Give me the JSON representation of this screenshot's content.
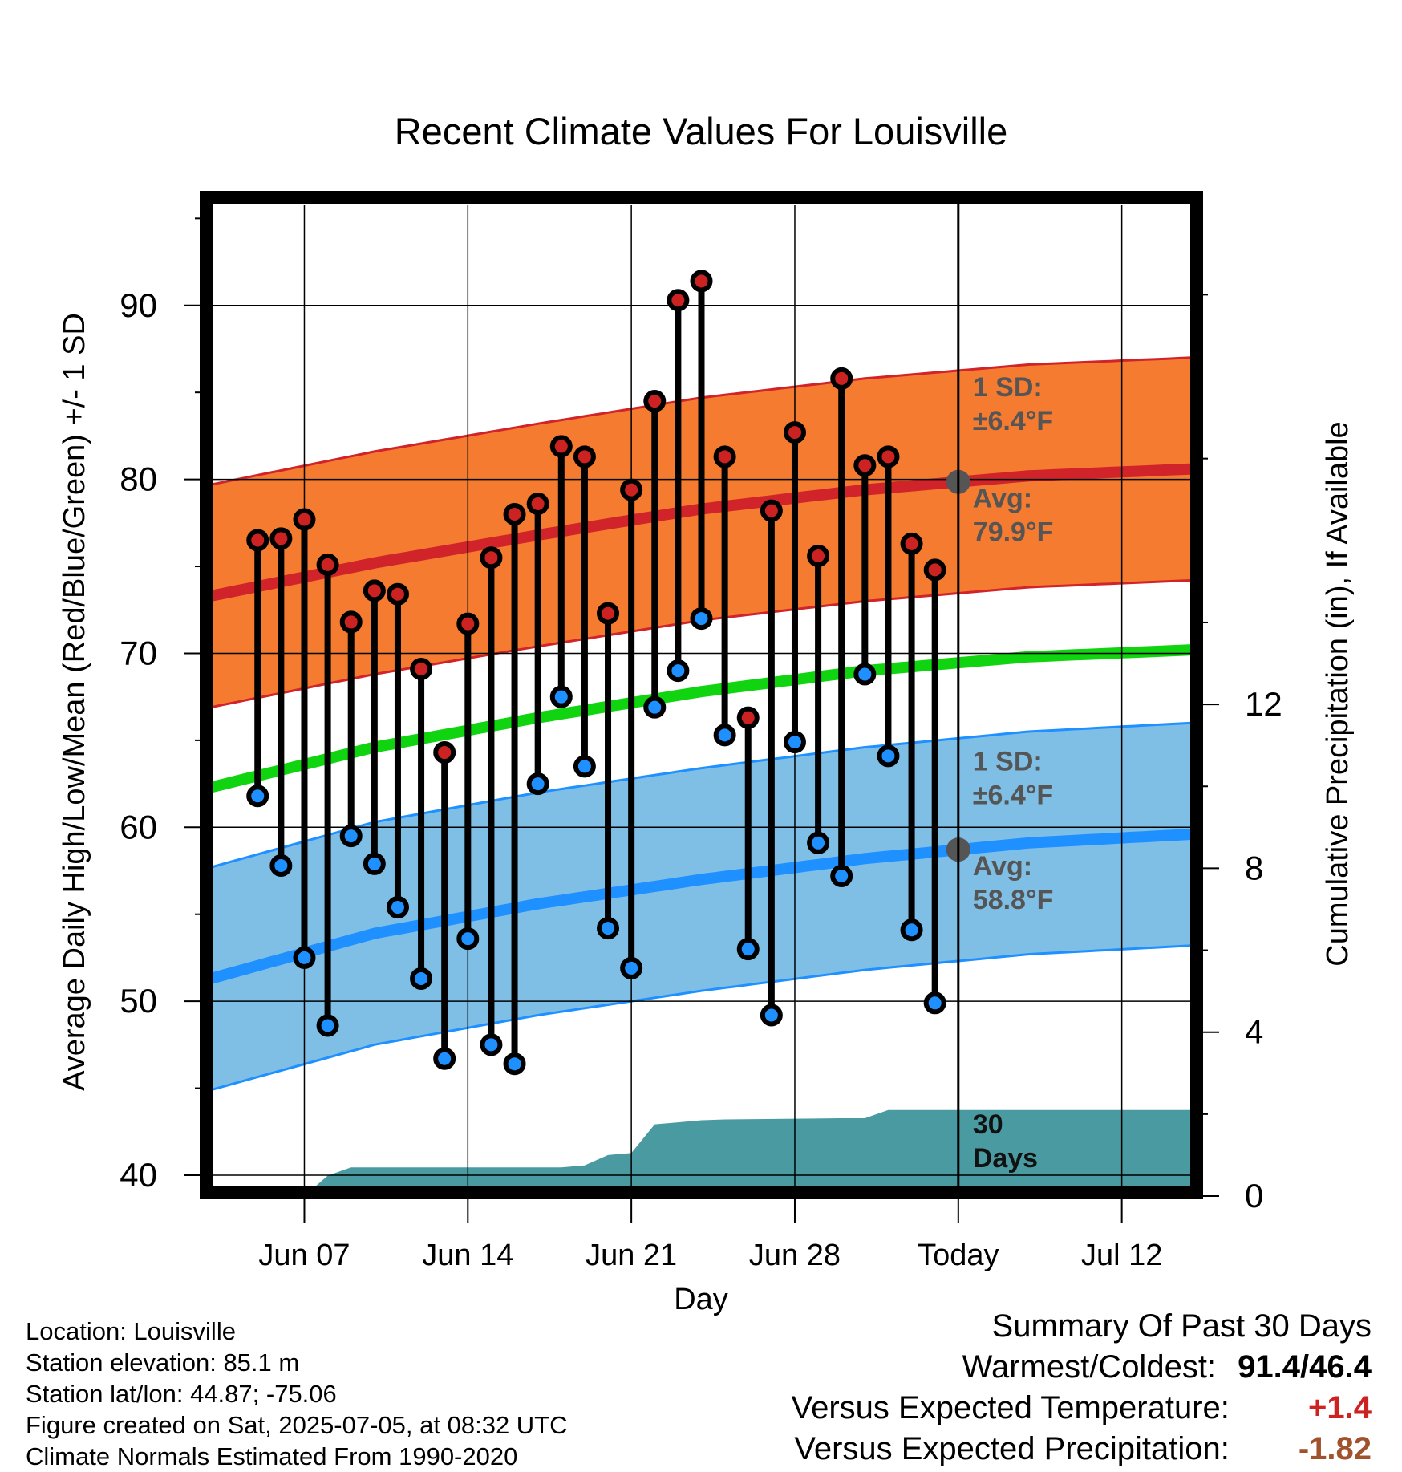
{
  "title": "Recent Climate Values For Louisville",
  "chart_data": {
    "type": "line",
    "title": "Recent Climate Values For Louisville",
    "xlabel": "Day",
    "ylabel": "Average Daily High/Low/Mean (Red/Blue/Green) +/- 1 SD",
    "y2label": "Cumulative Precipitation (in), If Available",
    "x_ticks": [
      "Jun 07",
      "Jun 14",
      "Jun 21",
      "Jun 28",
      "Today",
      "Jul 12"
    ],
    "x_tick_dates": [
      "2025-06-07",
      "2025-06-14",
      "2025-06-21",
      "2025-06-28",
      "2025-07-05",
      "2025-07-12"
    ],
    "xlim": [
      "2025-06-03",
      "2025-07-15"
    ],
    "today": "2025-07-05",
    "y_ticks": [
      40,
      50,
      60,
      70,
      80,
      90
    ],
    "ylim": [
      38.8,
      95.8
    ],
    "y2_ticks": [
      0,
      4,
      8,
      12
    ],
    "y2lim": [
      0,
      24.2
    ],
    "grid": true,
    "observed": {
      "dates": [
        "2025-06-05",
        "2025-06-06",
        "2025-06-07",
        "2025-06-08",
        "2025-06-09",
        "2025-06-10",
        "2025-06-11",
        "2025-06-12",
        "2025-06-13",
        "2025-06-14",
        "2025-06-15",
        "2025-06-16",
        "2025-06-17",
        "2025-06-18",
        "2025-06-19",
        "2025-06-20",
        "2025-06-21",
        "2025-06-22",
        "2025-06-23",
        "2025-06-24",
        "2025-06-25",
        "2025-06-26",
        "2025-06-27",
        "2025-06-28",
        "2025-06-29",
        "2025-06-30",
        "2025-07-01",
        "2025-07-02",
        "2025-07-03",
        "2025-07-04"
      ],
      "high": [
        76.5,
        76.6,
        77.7,
        75.1,
        71.8,
        73.6,
        73.4,
        69.1,
        64.3,
        71.7,
        75.5,
        78.0,
        78.6,
        81.9,
        81.3,
        72.3,
        79.4,
        84.5,
        90.3,
        91.4,
        81.3,
        66.3,
        78.2,
        82.7,
        75.6,
        85.8,
        80.8,
        81.3,
        76.3,
        74.8
      ],
      "low": [
        61.8,
        57.8,
        52.5,
        48.6,
        59.5,
        57.9,
        55.4,
        51.3,
        46.7,
        53.6,
        47.5,
        46.4,
        62.5,
        67.5,
        63.5,
        54.2,
        51.9,
        66.9,
        69.0,
        72.0,
        65.3,
        53.0,
        49.2,
        64.9,
        59.1,
        57.2,
        68.8,
        64.1,
        54.1,
        49.9
      ]
    },
    "normals": {
      "dates": [
        "2025-06-03",
        "2025-06-10",
        "2025-06-17",
        "2025-06-24",
        "2025-07-01",
        "2025-07-08",
        "2025-07-15"
      ],
      "high_avg": [
        73.3,
        75.2,
        76.8,
        78.3,
        79.4,
        80.2,
        80.6
      ],
      "low_avg": [
        51.3,
        53.9,
        55.6,
        57.0,
        58.2,
        59.1,
        59.6
      ],
      "mean_avg": [
        62.3,
        64.6,
        66.3,
        67.8,
        69.0,
        69.8,
        70.2
      ],
      "high_sd": 6.4,
      "low_sd": 6.4
    },
    "precip": {
      "dates": [
        "2025-06-07",
        "2025-06-08",
        "2025-06-09",
        "2025-06-18",
        "2025-06-19",
        "2025-06-20",
        "2025-06-21",
        "2025-06-22",
        "2025-06-23",
        "2025-06-24",
        "2025-06-25",
        "2025-06-30",
        "2025-07-01",
        "2025-07-02",
        "2025-07-15"
      ],
      "cumulative": [
        0.0,
        0.5,
        0.7,
        0.7,
        0.75,
        1.0,
        1.05,
        1.75,
        1.8,
        1.85,
        1.87,
        1.9,
        1.9,
        2.1,
        2.1
      ]
    },
    "annotations": {
      "high_sd_label": "1 SD:",
      "high_sd_value": "±6.4°F",
      "high_avg_label": "Avg:",
      "high_avg_value": "79.9°F",
      "low_sd_label": "1 SD:",
      "low_sd_value": "±6.4°F",
      "low_avg_label": "Avg:",
      "low_avg_value": "58.8°F",
      "precip_label_1": "30",
      "precip_label_2": "Days"
    },
    "colors": {
      "high_band": "#f47b2f",
      "high_line": "#d1232a",
      "low_band": "#7fbfe6",
      "low_line": "#1e90ff",
      "mean_line": "#11d411",
      "precip": "#4a9aa2",
      "high_dot": "#cc2222",
      "low_dot": "#1e90ff",
      "annotation": "#555555"
    }
  },
  "info": {
    "location": "Location: Louisville",
    "elevation": "Station elevation: 85.1 m",
    "latlon": "Station lat/lon: 44.87; -75.06",
    "created": "Figure created on Sat, 2025-07-05, at 08:32 UTC",
    "normals": "Climate Normals Estimated From 1990-2020"
  },
  "summary": {
    "heading": "Summary Of Past 30 Days",
    "warmest_label": "Warmest/Coldest:",
    "warmest_value": "91.4/46.4",
    "temp_label": "Versus Expected Temperature:",
    "temp_value": "+1.4",
    "temp_color": "#cc2222",
    "precip_label": "Versus Expected Precipitation:",
    "precip_value": "-1.82",
    "precip_color": "#a0522d"
  }
}
